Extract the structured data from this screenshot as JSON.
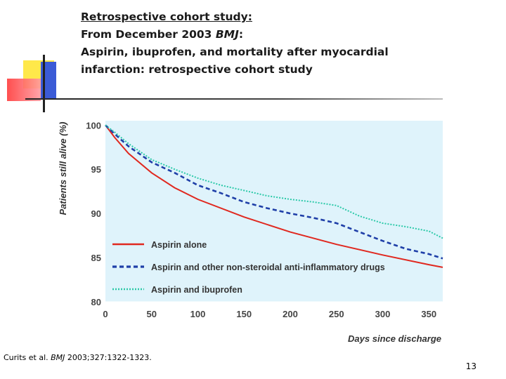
{
  "slide": {
    "title_line1": "Retrospective cohort study:",
    "title_line2_prefix": "From December 2003 ",
    "title_line2_journal": "BMJ",
    "title_line2_suffix": ":",
    "title_line3": "Aspirin, ibuprofen, and mortality after myocardial",
    "title_line4": "infarction: retrospective cohort study",
    "citation_prefix": "Curits et al. ",
    "citation_journal": "BMJ",
    "citation_suffix": " 2003;327:1322-1323.",
    "page_number": "13"
  },
  "colors": {
    "plot_background": "#dff3fb",
    "aspirin_alone": "#e0281f",
    "aspirin_nsaid": "#1f3fa8",
    "aspirin_ibuprofen": "#2bc9a8",
    "deco_yellow": "#ffe84a",
    "deco_blue": "#3b5bd6",
    "deco_red": "#ff3b3b"
  },
  "chart_data": {
    "type": "line",
    "title": "",
    "xlabel": "Days since discharge",
    "ylabel": "Patients still alive (%)",
    "xlim": [
      0,
      365
    ],
    "ylim": [
      80,
      100.5
    ],
    "x_ticks": [
      "0",
      "50",
      "100",
      "150",
      "200",
      "250",
      "300",
      "350"
    ],
    "y_ticks": [
      "80",
      "85",
      "90",
      "95",
      "100"
    ],
    "legend": [
      "Aspirin alone",
      "Aspirin and other non-steroidal anti-inflammatory drugs",
      "Aspirin and ibuprofen"
    ],
    "legend_position": "bottom-left",
    "series": [
      {
        "name": "Aspirin alone",
        "style": "solid",
        "x": [
          0,
          10,
          25,
          50,
          75,
          100,
          150,
          200,
          250,
          300,
          350,
          365
        ],
        "y": [
          100,
          98.6,
          96.8,
          94.6,
          92.9,
          91.6,
          89.6,
          87.9,
          86.5,
          85.3,
          84.2,
          83.9
        ]
      },
      {
        "name": "Aspirin and other non-steroidal anti-inflammatory drugs",
        "style": "dashed",
        "x": [
          0,
          10,
          25,
          50,
          75,
          100,
          125,
          150,
          175,
          200,
          225,
          250,
          275,
          300,
          325,
          350,
          365
        ],
        "y": [
          100,
          99.0,
          97.6,
          95.8,
          94.6,
          93.2,
          92.3,
          91.3,
          90.6,
          90.0,
          89.5,
          88.9,
          87.9,
          86.9,
          86.0,
          85.4,
          84.9
        ]
      },
      {
        "name": "Aspirin and ibuprofen",
        "style": "dotted",
        "x": [
          0,
          10,
          25,
          50,
          75,
          100,
          125,
          150,
          175,
          200,
          225,
          250,
          275,
          300,
          325,
          350,
          365
        ],
        "y": [
          100,
          99.2,
          97.9,
          96.1,
          95.0,
          94.0,
          93.2,
          92.6,
          92.0,
          91.6,
          91.3,
          90.9,
          89.7,
          88.9,
          88.5,
          88.0,
          87.2
        ]
      }
    ]
  }
}
